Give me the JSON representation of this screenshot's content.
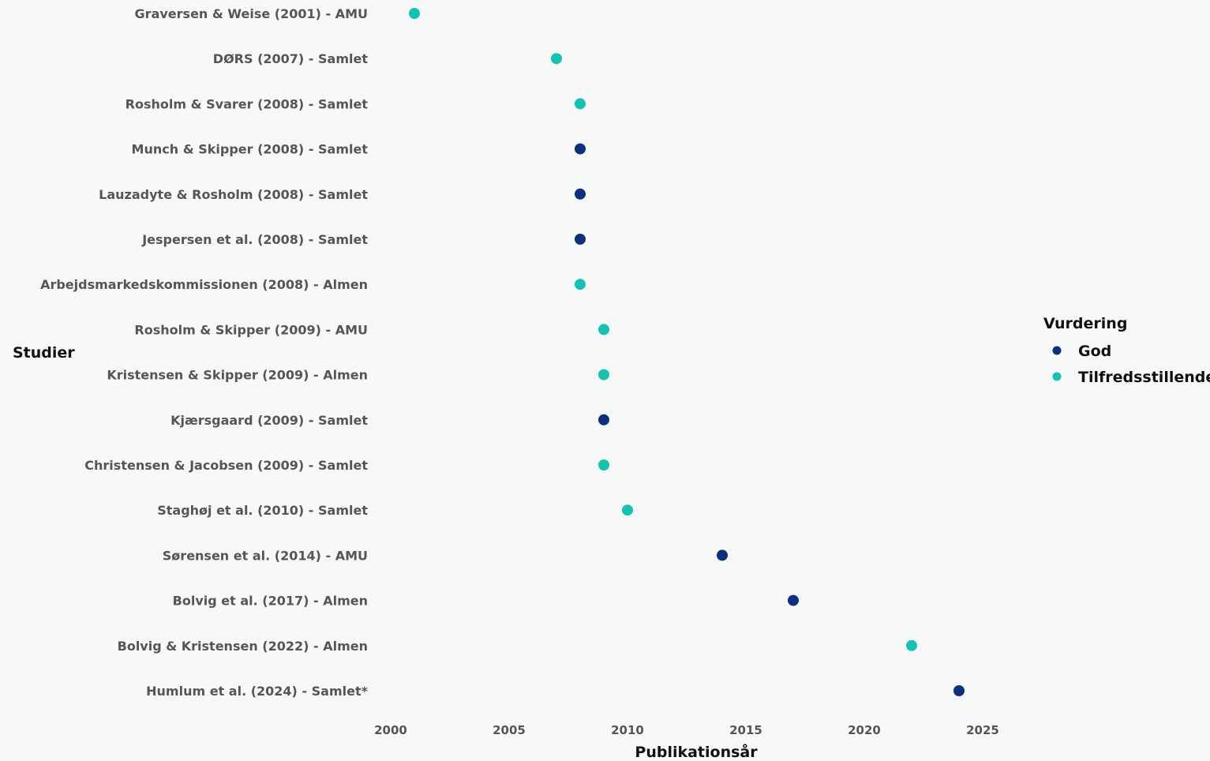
{
  "chart_data": {
    "type": "scatter",
    "xlabel": "Publikationsår",
    "ylabel": "Studier",
    "xlim": [
      1999.5,
      2026.5
    ],
    "x_ticks": [
      2000,
      2005,
      2010,
      2015,
      2020,
      2025
    ],
    "x_tick_labels": [
      "2000",
      "2005",
      "2010",
      "2015",
      "2020",
      "2025"
    ],
    "grid": false,
    "legend": {
      "title": "Vurdering",
      "placement": "right",
      "entries": [
        {
          "label": "God",
          "color": "#0d2f7e"
        },
        {
          "label": "Tilfredsstillende",
          "color": "#14c2b2"
        }
      ]
    },
    "points": [
      {
        "study": "Graversen & Weise (2001) - AMU",
        "year": 2001,
        "rating": "Tilfredsstillende"
      },
      {
        "study": "DØRS (2007)  - Samlet",
        "year": 2007,
        "rating": "Tilfredsstillende"
      },
      {
        "study": "Rosholm & Svarer (2008) - Samlet",
        "year": 2008,
        "rating": "Tilfredsstillende"
      },
      {
        "study": "Munch & Skipper (2008) - Samlet",
        "year": 2008,
        "rating": "God"
      },
      {
        "study": "Lauzadyte & Rosholm (2008) - Samlet",
        "year": 2008,
        "rating": "God"
      },
      {
        "study": "Jespersen et al. (2008) - Samlet",
        "year": 2008,
        "rating": "God"
      },
      {
        "study": "Arbejdsmarkedskommissionen (2008) - Almen",
        "year": 2008,
        "rating": "Tilfredsstillende"
      },
      {
        "study": "Rosholm & Skipper (2009) - AMU",
        "year": 2009,
        "rating": "Tilfredsstillende"
      },
      {
        "study": "Kristensen & Skipper (2009) - Almen",
        "year": 2009,
        "rating": "Tilfredsstillende"
      },
      {
        "study": "Kjærsgaard (2009) - Samlet",
        "year": 2009,
        "rating": "God"
      },
      {
        "study": "Christensen & Jacobsen (2009) - Samlet",
        "year": 2009,
        "rating": "Tilfredsstillende"
      },
      {
        "study": "Staghøj et al. (2010) - Samlet",
        "year": 2010,
        "rating": "Tilfredsstillende"
      },
      {
        "study": "Sørensen et al. (2014) - AMU",
        "year": 2014,
        "rating": "God"
      },
      {
        "study": "Bolvig et al. (2017) - Almen",
        "year": 2017,
        "rating": "God"
      },
      {
        "study": "Bolvig & Kristensen (2022) -  Almen",
        "year": 2022,
        "rating": "Tilfredsstillende"
      },
      {
        "study": "Humlum et al. (2024) - Samlet*",
        "year": 2024,
        "rating": "God"
      }
    ]
  }
}
